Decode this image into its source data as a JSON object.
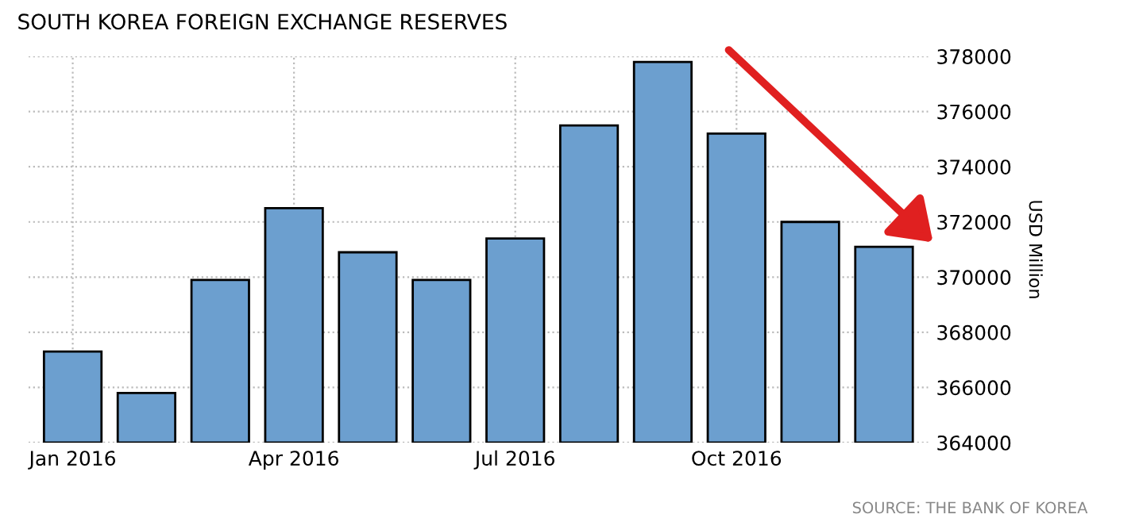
{
  "chart_data": {
    "type": "bar",
    "title": "SOUTH KOREA FOREIGN EXCHANGE RESERVES",
    "ylabel": "USD Million",
    "categories": [
      "Jan 2016",
      null,
      null,
      "Apr 2016",
      null,
      null,
      "Jul 2016",
      null,
      null,
      "Oct 2016",
      null,
      null
    ],
    "values": [
      367300,
      365800,
      369900,
      372500,
      370900,
      369900,
      371400,
      375500,
      377800,
      375200,
      372000,
      371100
    ],
    "color": "#6c9fcf",
    "ylim": [
      364000,
      378000
    ],
    "yticks": [
      364000,
      366000,
      368000,
      370000,
      372000,
      374000,
      376000,
      378000
    ],
    "grid": true,
    "annotations": [
      "SOURCE: THE BANK OF KOREA"
    ]
  }
}
